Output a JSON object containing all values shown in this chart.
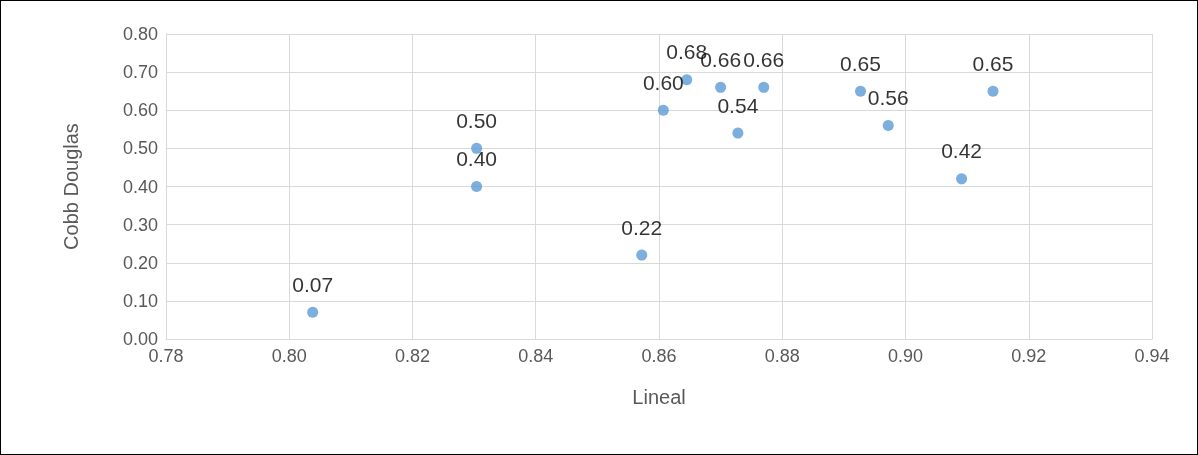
{
  "chart_data": {
    "type": "scatter",
    "xlabel": "Lineal",
    "ylabel": "Cobb Douglas",
    "x": [
      0.8038,
      0.8304,
      0.8304,
      0.8572,
      0.8607,
      0.8645,
      0.87,
      0.8728,
      0.877,
      0.8927,
      0.8972,
      0.9091,
      0.9142
    ],
    "series": [
      {
        "color": "#5b9bd5",
        "values": [
          0.07,
          0.5,
          0.4,
          0.22,
          0.6,
          0.68,
          0.66,
          0.54,
          0.66,
          0.65,
          0.56,
          0.42,
          0.65
        ],
        "value_labels": [
          "0.07",
          "0.50",
          "0.40",
          "0.22",
          "0.60",
          "0.68",
          "0.66",
          "0.54",
          "0.66",
          "0.65",
          "0.56",
          "0.42",
          "0.65"
        ]
      }
    ],
    "xlim": [
      0.78,
      0.94
    ],
    "xticks": [
      {
        "value": 0.78,
        "label": "0.78"
      },
      {
        "value": 0.8,
        "label": "0.80"
      },
      {
        "value": 0.82,
        "label": "0.82"
      },
      {
        "value": 0.84,
        "label": "0.84"
      },
      {
        "value": 0.86,
        "label": "0.86"
      },
      {
        "value": 0.88,
        "label": "0.88"
      },
      {
        "value": 0.9,
        "label": "0.90"
      },
      {
        "value": 0.92,
        "label": "0.92"
      },
      {
        "value": 0.94,
        "label": "0.94"
      }
    ],
    "ylim": [
      0,
      0.8
    ],
    "yticks": [
      {
        "value": 0,
        "label": "0.00"
      },
      {
        "value": 0.1,
        "label": "0.10"
      },
      {
        "value": 0.2,
        "label": "0.20"
      },
      {
        "value": 0.3,
        "label": "0.30"
      },
      {
        "value": 0.4,
        "label": "0.40"
      },
      {
        "value": 0.5,
        "label": "0.50"
      },
      {
        "value": 0.6,
        "label": "0.60"
      },
      {
        "value": 0.7,
        "label": "0.70"
      },
      {
        "value": 0.8,
        "label": "0.80"
      }
    ],
    "grid": true,
    "marker": "circle"
  }
}
